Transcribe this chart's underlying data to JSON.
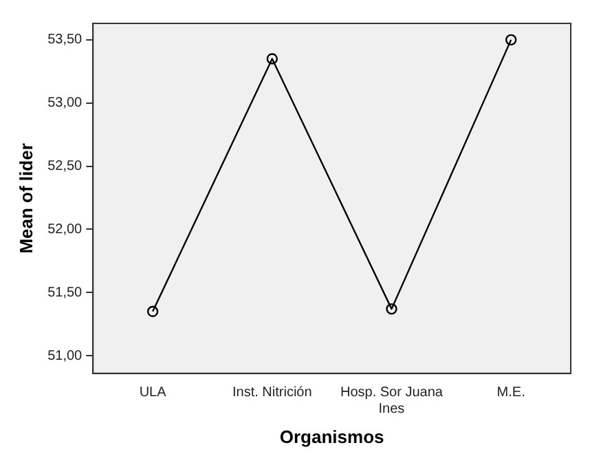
{
  "chart_data": {
    "type": "line",
    "xlabel": "Organismos",
    "ylabel": "Mean of lider",
    "categories": [
      "ULA",
      "Inst. Nitrición",
      "Hosp. Sor Juana Ines",
      "M.E."
    ],
    "series": [
      {
        "color": "#000000",
        "values": [
          51.35,
          53.35,
          51.37,
          53.5
        ]
      }
    ],
    "ylim": [
      50.86,
      53.63
    ],
    "yticks": [
      {
        "value": 51,
        "label": "51,00"
      },
      {
        "value": 51.5,
        "label": "51,50"
      },
      {
        "value": 52,
        "label": "52,00"
      },
      {
        "value": 52.5,
        "label": "52,50"
      },
      {
        "value": 53,
        "label": "53,00"
      },
      {
        "value": 53.5,
        "label": "53,50"
      }
    ],
    "grid": false,
    "legend": false,
    "marker": "circle",
    "line_style": "solid"
  }
}
